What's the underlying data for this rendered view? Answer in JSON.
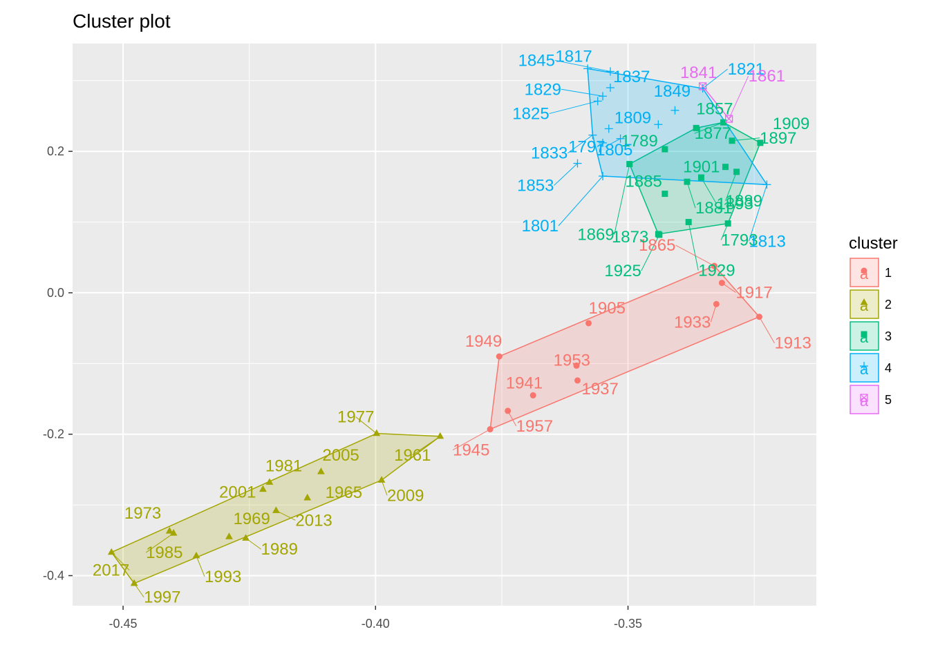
{
  "chart_data": {
    "type": "scatter",
    "title": "Cluster plot",
    "xlabel": "",
    "ylabel": "",
    "xlim": [
      -0.46,
      -0.3127
    ],
    "ylim": [
      -0.4425,
      0.3525
    ],
    "x_ticks": [
      -0.45,
      -0.4,
      -0.35
    ],
    "x_tick_labels": [
      "-0.45",
      "-0.40",
      "-0.35"
    ],
    "y_ticks": [
      -0.4,
      -0.2,
      0.0,
      0.2
    ],
    "y_tick_labels": [
      "-0.4",
      "-0.2",
      "0.0",
      "0.2"
    ],
    "grid": true,
    "legend": {
      "title": "cluster",
      "placement": "right",
      "glyph": "a",
      "entries": [
        "1",
        "2",
        "3",
        "4",
        "5"
      ]
    },
    "series": [
      {
        "name": "1",
        "color": "#F8766D",
        "marker": "circle",
        "points": [
          {
            "label": "1865",
            "x": -0.3329,
            "y": 0.038
          },
          {
            "label": "1917",
            "x": -0.3314,
            "y": 0.014
          },
          {
            "label": "1933",
            "x": -0.3325,
            "y": -0.016
          },
          {
            "label": "1913",
            "x": -0.324,
            "y": -0.034
          },
          {
            "label": "1905",
            "x": -0.3578,
            "y": -0.043
          },
          {
            "label": "1949",
            "x": -0.3755,
            "y": -0.09
          },
          {
            "label": "1953",
            "x": -0.3602,
            "y": -0.103
          },
          {
            "label": "1937",
            "x": -0.36,
            "y": -0.124
          },
          {
            "label": "1941",
            "x": -0.3688,
            "y": -0.145
          },
          {
            "label": "1957",
            "x": -0.3738,
            "y": -0.167
          },
          {
            "label": "1945",
            "x": -0.3773,
            "y": -0.193
          }
        ],
        "hull": [
          [
            -0.3329,
            0.038
          ],
          [
            -0.324,
            -0.034
          ],
          [
            -0.3773,
            -0.193
          ],
          [
            -0.3755,
            -0.09
          ]
        ]
      },
      {
        "name": "2",
        "color": "#A3A500",
        "marker": "triangle",
        "points": [
          {
            "label": "1977",
            "x": -0.3998,
            "y": -0.199
          },
          {
            "label": "1961",
            "x": -0.3872,
            "y": -0.203
          },
          {
            "label": "2009",
            "x": -0.3988,
            "y": -0.265
          },
          {
            "label": "2005",
            "x": -0.4108,
            "y": -0.253
          },
          {
            "label": "1981",
            "x": -0.421,
            "y": -0.268
          },
          {
            "label": "2001",
            "x": -0.4223,
            "y": -0.278
          },
          {
            "label": "1965",
            "x": -0.4135,
            "y": -0.29
          },
          {
            "label": "2013",
            "x": -0.4197,
            "y": -0.308
          },
          {
            "label": "1973",
            "x": -0.4408,
            "y": -0.337
          },
          {
            "label": "1985",
            "x": -0.44,
            "y": -0.34
          },
          {
            "label": "1969",
            "x": -0.429,
            "y": -0.345
          },
          {
            "label": "1989",
            "x": -0.4257,
            "y": -0.347
          },
          {
            "label": "1993",
            "x": -0.4355,
            "y": -0.372
          },
          {
            "label": "2017",
            "x": -0.4523,
            "y": -0.367
          },
          {
            "label": "1997",
            "x": -0.4478,
            "y": -0.411
          }
        ],
        "hull": [
          [
            -0.3998,
            -0.199
          ],
          [
            -0.3872,
            -0.203
          ],
          [
            -0.3988,
            -0.265
          ],
          [
            -0.4478,
            -0.411
          ],
          [
            -0.4523,
            -0.367
          ]
        ]
      },
      {
        "name": "3",
        "color": "#00BF7D",
        "marker": "square",
        "points": [
          {
            "label": "1909",
            "x": -0.3238,
            "y": 0.212
          },
          {
            "label": "1897",
            "x": -0.3294,
            "y": 0.215
          },
          {
            "label": "1877",
            "x": -0.3311,
            "y": 0.241
          },
          {
            "label": "1857",
            "x": -0.3365,
            "y": 0.233
          },
          {
            "label": "1889",
            "x": -0.3285,
            "y": 0.171
          },
          {
            "label": "1901",
            "x": -0.3307,
            "y": 0.178
          },
          {
            "label": "1893",
            "x": -0.3355,
            "y": 0.163
          },
          {
            "label": "1881",
            "x": -0.3383,
            "y": 0.157
          },
          {
            "label": "1885",
            "x": -0.3427,
            "y": 0.14
          },
          {
            "label": "1869",
            "x": -0.3497,
            "y": 0.182
          },
          {
            "label": "1789",
            "x": -0.3427,
            "y": 0.203
          },
          {
            "label": "1793",
            "x": -0.3302,
            "y": 0.098
          },
          {
            "label": "1929",
            "x": -0.338,
            "y": 0.1
          },
          {
            "label": "1873",
            "x": -0.344,
            "y": 0.083
          },
          {
            "label": "1925",
            "x": -0.3438,
            "y": 0.082
          }
        ],
        "hull": [
          [
            -0.3311,
            0.241
          ],
          [
            -0.3238,
            0.212
          ],
          [
            -0.3302,
            0.098
          ],
          [
            -0.344,
            0.083
          ],
          [
            -0.3497,
            0.182
          ],
          [
            -0.3365,
            0.233
          ]
        ]
      },
      {
        "name": "4",
        "color": "#00B0F6",
        "marker": "plus",
        "points": [
          {
            "label": "1845",
            "x": -0.3535,
            "y": 0.313
          },
          {
            "label": "1817",
            "x": -0.358,
            "y": 0.317
          },
          {
            "label": "1837",
            "x": -0.3535,
            "y": 0.29
          },
          {
            "label": "1829",
            "x": -0.355,
            "y": 0.278
          },
          {
            "label": "1821",
            "x": -0.3352,
            "y": 0.289
          },
          {
            "label": "1849",
            "x": -0.3407,
            "y": 0.258
          },
          {
            "label": "1825",
            "x": -0.356,
            "y": 0.271
          },
          {
            "label": "1809",
            "x": -0.3538,
            "y": 0.232
          },
          {
            "label": "1833",
            "x": -0.357,
            "y": 0.223
          },
          {
            "label": "1797",
            "x": -0.3515,
            "y": 0.218
          },
          {
            "label": "1805",
            "x": -0.355,
            "y": 0.212
          },
          {
            "label": "1853",
            "x": -0.36,
            "y": 0.183
          },
          {
            "label": "1801",
            "x": -0.355,
            "y": 0.165
          },
          {
            "label": "1813",
            "x": -0.3225,
            "y": 0.153
          },
          {
            "label": "",
            "x": -0.344,
            "y": 0.238
          }
        ],
        "hull": [
          [
            -0.358,
            0.317
          ],
          [
            -0.3352,
            0.289
          ],
          [
            -0.3225,
            0.153
          ],
          [
            -0.355,
            0.165
          ],
          [
            -0.357,
            0.223
          ]
        ]
      },
      {
        "name": "5",
        "color": "#E76BF3",
        "marker": "square-cross",
        "points": [
          {
            "label": "1841",
            "x": -0.3352,
            "y": 0.292
          },
          {
            "label": "1861",
            "x": -0.33,
            "y": 0.246
          }
        ],
        "hull": [
          [
            -0.3352,
            0.292
          ],
          [
            -0.33,
            0.246
          ]
        ]
      }
    ]
  }
}
